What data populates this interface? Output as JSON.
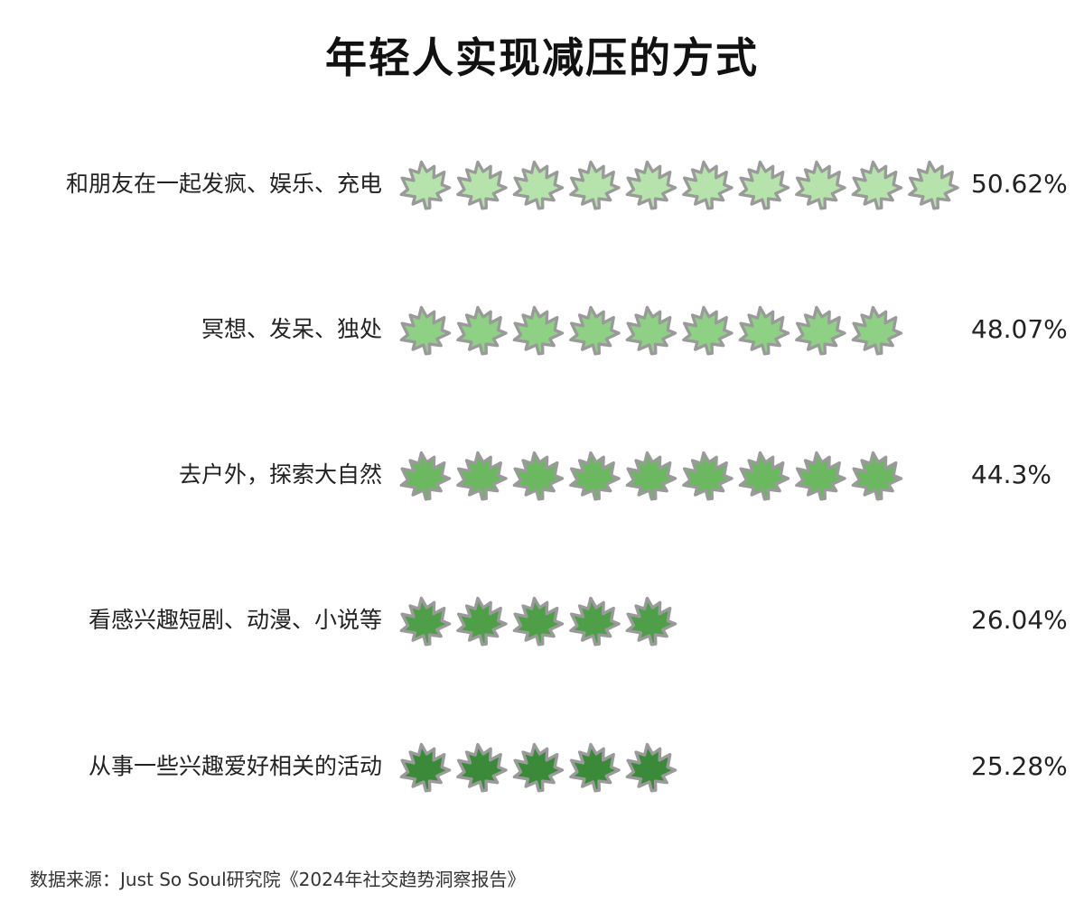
{
  "title": "年轻人实现减压的方式",
  "source": "数据来源：Just So Soul研究院《2024年社交趋势洞察报告》",
  "chart_data": {
    "type": "bar",
    "title": "年轻人实现减压的方式",
    "unit": "%",
    "categories": [
      "和朋友在一起发疯、娱乐、充电",
      "冥想、发呆、独处",
      "去户外，探索大自然",
      "看感兴趣短剧、动漫、小说等",
      "从事一些兴趣爱好相关的活动"
    ],
    "values": [
      50.62,
      48.07,
      44.3,
      26.04,
      25.28
    ],
    "value_labels": [
      "50.62%",
      "48.07%",
      "44.3%",
      "26.04%",
      "25.28%"
    ],
    "icon_counts": [
      10,
      9,
      9,
      5,
      5
    ],
    "icon": "maple-leaf-icon",
    "colors": [
      "#b6e3ac",
      "#8fd184",
      "#6bb861",
      "#4e9f47",
      "#3a8a3a"
    ],
    "outline_color": "#9a9a9a"
  }
}
